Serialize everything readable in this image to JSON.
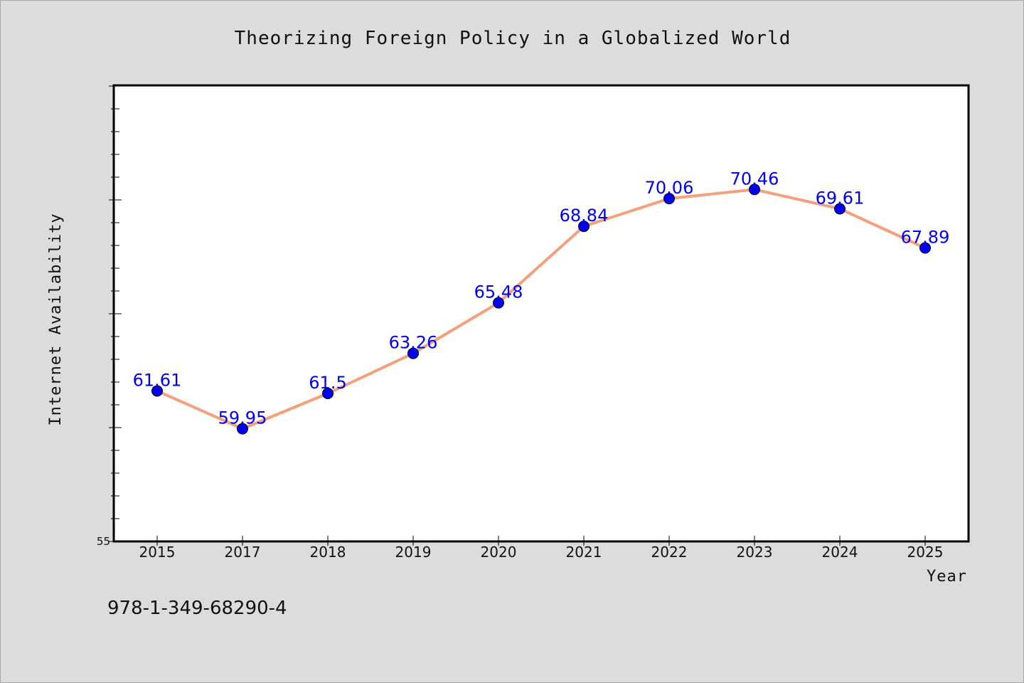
{
  "chart_data": {
    "type": "line",
    "title": "Theorizing Foreign Policy in a Globalized World",
    "xlabel": "Year",
    "ylabel": "Internet Availability",
    "categories": [
      "2015",
      "2017",
      "2018",
      "2019",
      "2020",
      "2021",
      "2022",
      "2023",
      "2024",
      "2025"
    ],
    "series": [
      {
        "values": [
          61.61,
          59.95,
          61.5,
          63.26,
          65.48,
          68.84,
          70.06,
          70.46,
          69.61,
          67.89
        ],
        "data_labels": [
          "61.61",
          "59.95",
          "61.5",
          "63.26",
          "65.48",
          "68.84",
          "70.06",
          "70.46",
          "69.61",
          "67.89"
        ],
        "line_color": "#f4a07c",
        "marker_color": "#0000ee"
      }
    ],
    "ylim": [
      55,
      75
    ],
    "y_minor_step": 1,
    "y_tick_labels": [
      "55"
    ],
    "grid": false,
    "legend": "none"
  },
  "footer": {
    "isbn": "978-1-349-68290-4"
  }
}
